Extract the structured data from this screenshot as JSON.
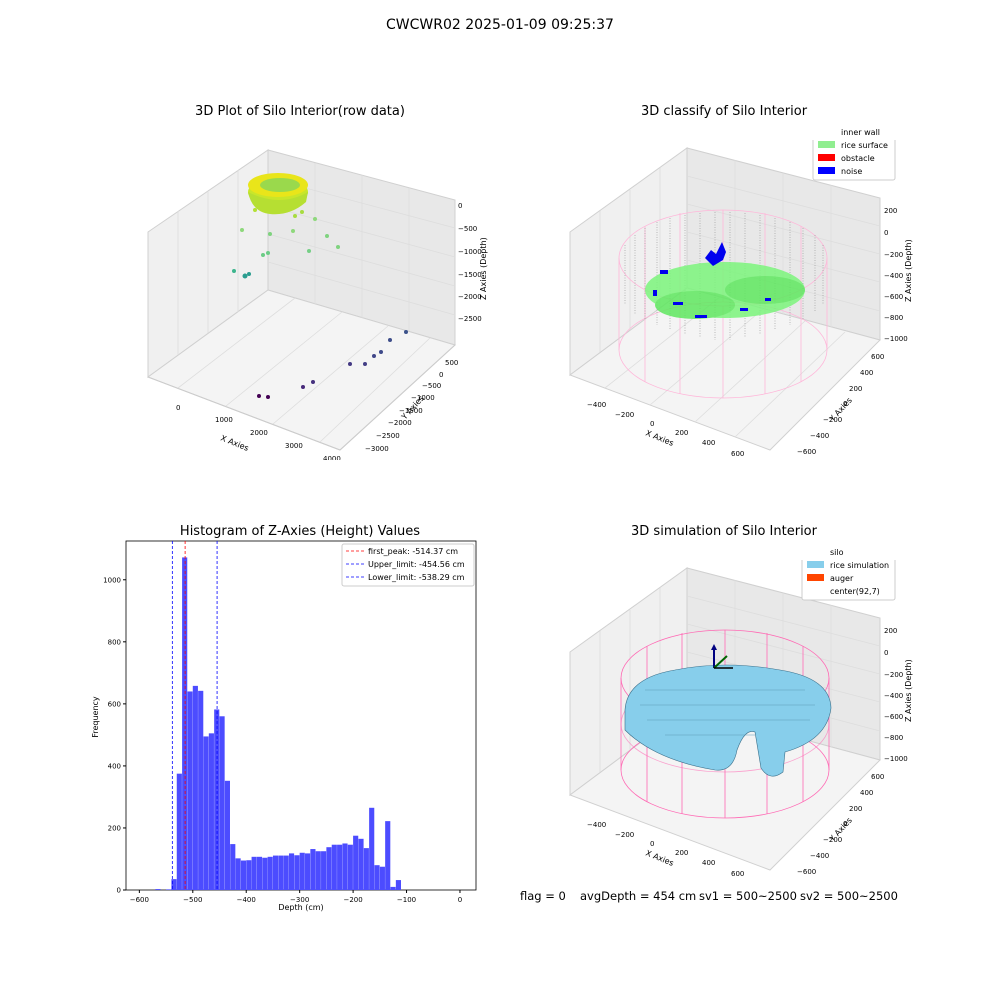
{
  "figure": {
    "suptitle": "CWCWR02 2025-01-09 09:25:37",
    "footer": {
      "flag": "flag = 0",
      "avg_depth": "avgDepth = 454 cm",
      "sv1": "sv1 = 500~2500",
      "sv2": "sv2 = 500~2500"
    }
  },
  "panels": {
    "raw": {
      "title": "3D Plot of Silo Interior(row data)",
      "xlabel": "X Axies",
      "ylabel": "Y Axies",
      "zlabel": "Z Axies (Depth)",
      "x_ticks": [
        "0",
        "1000",
        "2000",
        "3000",
        "4000"
      ],
      "y_ticks": [
        "500",
        "0",
        "−500",
        "−1000",
        "−1500",
        "−2000",
        "−2500",
        "−3000"
      ],
      "z_ticks": [
        "0",
        "−500",
        "−1000",
        "−1500",
        "−2000",
        "−2500"
      ]
    },
    "classify": {
      "title": "3D classify of Silo Interior",
      "xlabel": "X Axies",
      "ylabel": "Y Axies",
      "zlabel": "Z Axies (Depth)",
      "x_ticks": [
        "−400",
        "−200",
        "0",
        "200",
        "400",
        "600"
      ],
      "y_ticks": [
        "600",
        "400",
        "200",
        "0",
        "−200",
        "−400",
        "−600"
      ],
      "z_ticks": [
        "200",
        "0",
        "−200",
        "−400",
        "−600",
        "−800",
        "−1000"
      ],
      "legend": [
        {
          "label": "inner wall",
          "color": "#808080"
        },
        {
          "label": "rice surface",
          "color": "#90ee90"
        },
        {
          "label": "obstacle",
          "color": "#ff0000"
        },
        {
          "label": "noise",
          "color": "#0000ff"
        }
      ]
    },
    "simulation": {
      "title": "3D simulation of Silo Interior",
      "xlabel": "X Axies",
      "ylabel": "Y Axies",
      "zlabel": "Z Axies (Depth)",
      "x_ticks": [
        "−400",
        "−200",
        "0",
        "200",
        "400",
        "600"
      ],
      "y_ticks": [
        "600",
        "400",
        "200",
        "0",
        "−200",
        "−400",
        "−600"
      ],
      "z_ticks": [
        "200",
        "0",
        "−200",
        "−400",
        "−600",
        "−800",
        "−1000"
      ],
      "legend": [
        {
          "label": "silo",
          "color": "#ff69b4"
        },
        {
          "label": "rice simulation",
          "color": "#87ceeb"
        },
        {
          "label": "auger",
          "color": "#ff4500"
        },
        {
          "label": "center(92,7)",
          "color": ""
        }
      ]
    }
  },
  "chart_data": {
    "type": "bar",
    "title": "Histogram of Z-Axies (Height) Values",
    "xlabel": "Depth (cm)",
    "ylabel": "Frequency",
    "xlim": [
      -625,
      30
    ],
    "ylim": [
      0,
      1125
    ],
    "x_ticks": [
      -600,
      -500,
      -400,
      -300,
      -200,
      -100,
      0
    ],
    "y_ticks": [
      0,
      200,
      400,
      600,
      800,
      1000
    ],
    "bar_color": "#4c4cff",
    "bin_width": 10,
    "bins": [
      {
        "start": -570,
        "count": 3
      },
      {
        "start": -550,
        "count": 2
      },
      {
        "start": -540,
        "count": 35
      },
      {
        "start": -530,
        "count": 375
      },
      {
        "start": -520,
        "count": 1072
      },
      {
        "start": -510,
        "count": 640
      },
      {
        "start": -500,
        "count": 658
      },
      {
        "start": -490,
        "count": 642
      },
      {
        "start": -480,
        "count": 495
      },
      {
        "start": -470,
        "count": 505
      },
      {
        "start": -460,
        "count": 582
      },
      {
        "start": -450,
        "count": 560
      },
      {
        "start": -440,
        "count": 352
      },
      {
        "start": -430,
        "count": 148
      },
      {
        "start": -420,
        "count": 102
      },
      {
        "start": -410,
        "count": 95
      },
      {
        "start": -400,
        "count": 96
      },
      {
        "start": -390,
        "count": 107
      },
      {
        "start": -380,
        "count": 107
      },
      {
        "start": -370,
        "count": 104
      },
      {
        "start": -360,
        "count": 107
      },
      {
        "start": -350,
        "count": 111
      },
      {
        "start": -340,
        "count": 111
      },
      {
        "start": -330,
        "count": 111
      },
      {
        "start": -320,
        "count": 118
      },
      {
        "start": -310,
        "count": 112
      },
      {
        "start": -300,
        "count": 120
      },
      {
        "start": -290,
        "count": 118
      },
      {
        "start": -280,
        "count": 132
      },
      {
        "start": -270,
        "count": 125
      },
      {
        "start": -260,
        "count": 125
      },
      {
        "start": -250,
        "count": 138
      },
      {
        "start": -240,
        "count": 146
      },
      {
        "start": -230,
        "count": 146
      },
      {
        "start": -220,
        "count": 150
      },
      {
        "start": -210,
        "count": 146
      },
      {
        "start": -200,
        "count": 175
      },
      {
        "start": -190,
        "count": 165
      },
      {
        "start": -180,
        "count": 135
      },
      {
        "start": -170,
        "count": 265
      },
      {
        "start": -160,
        "count": 80
      },
      {
        "start": -150,
        "count": 75
      },
      {
        "start": -140,
        "count": 222
      },
      {
        "start": -130,
        "count": 10
      },
      {
        "start": -120,
        "count": 32
      }
    ],
    "vlines": [
      {
        "x": -514.37,
        "color": "#ff0000",
        "label": "first_peak: -514.37 cm"
      },
      {
        "x": -454.56,
        "color": "#0000ff",
        "label": "Upper_limit: -454.56 cm"
      },
      {
        "x": -538.29,
        "color": "#0000ff",
        "label": "Lower_limit: -538.29 cm"
      }
    ]
  }
}
